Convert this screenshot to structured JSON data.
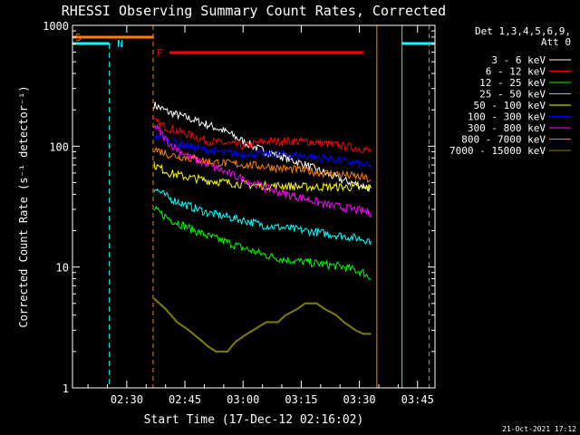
{
  "chart_data": {
    "type": "line",
    "title": "RHESSI Observing Summary Count Rates, Corrected",
    "xlabel": "Start Time (17-Dec-12 02:16:02)",
    "ylabel": "Corrected Count Rate (s⁻¹ detector⁻¹)",
    "yscale": "log",
    "ylim": [
      1,
      1000
    ],
    "xlim_minutes_after_0216": [
      0,
      93.5
    ],
    "xticks": [
      {
        "label": "02:30",
        "value": 14
      },
      {
        "label": "02:45",
        "value": 29
      },
      {
        "label": "03:00",
        "value": 44
      },
      {
        "label": "03:15",
        "value": 59
      },
      {
        "label": "03:30",
        "value": 74
      },
      {
        "label": "03:45",
        "value": 89
      }
    ],
    "yticks": [
      {
        "label": "1",
        "value": 1
      },
      {
        "label": "10",
        "value": 10
      },
      {
        "label": "100",
        "value": 100
      },
      {
        "label": "1000",
        "value": 1000
      }
    ],
    "legend_header": [
      "Det 1,3,4,5,6,9,",
      "Att 0"
    ],
    "legend_position": "right",
    "footer": "21-Oct-2021 17:12",
    "flags": [
      {
        "letter": "S",
        "color": "#ff8000",
        "start": 0,
        "end": 21
      },
      {
        "letter": "F",
        "color": "#ff0000",
        "start": 25,
        "end": 75
      }
    ],
    "night": {
      "letter": "N",
      "color": "#00ffff"
    },
    "series": [
      {
        "name": "3 - 6 keV",
        "color": "#ffffff",
        "x": [
          21,
          25,
          30,
          35,
          40,
          44,
          48,
          50,
          55,
          60,
          65,
          70,
          75,
          77
        ],
        "y": [
          220,
          190,
          170,
          150,
          130,
          110,
          95,
          90,
          80,
          70,
          60,
          52,
          47,
          45
        ]
      },
      {
        "name": "6 - 12 keV",
        "color": "#ff0000",
        "x": [
          21,
          25,
          30,
          35,
          40,
          44,
          47,
          50,
          55,
          60,
          65,
          70,
          75,
          77
        ],
        "y": [
          160,
          140,
          125,
          110,
          105,
          100,
          105,
          110,
          110,
          110,
          105,
          100,
          95,
          90
        ]
      },
      {
        "name": "12 - 25 keV",
        "color": "#00ff00",
        "x": [
          21,
          25,
          30,
          35,
          40,
          45,
          50,
          55,
          60,
          65,
          70,
          75,
          77
        ],
        "y": [
          30,
          25,
          21,
          18,
          16,
          14,
          12.5,
          11.5,
          11,
          10.5,
          10,
          9,
          8
        ]
      },
      {
        "name": "25 - 50 keV",
        "color": "#00ffff",
        "x": [
          21,
          25,
          30,
          35,
          40,
          45,
          50,
          55,
          60,
          65,
          70,
          75,
          77
        ],
        "y": [
          45,
          37,
          32,
          28,
          26,
          24,
          22,
          21,
          20,
          19,
          18,
          17,
          16.5
        ]
      },
      {
        "name": "50 - 100 keV",
        "color": "#ffff00",
        "x": [
          21,
          25,
          30,
          35,
          40,
          45,
          50,
          55,
          60,
          65,
          70,
          75,
          77
        ],
        "y": [
          70,
          60,
          55,
          52,
          50,
          48,
          47,
          47,
          46,
          46,
          46,
          45,
          45
        ]
      },
      {
        "name": "100 - 300 keV",
        "color": "#0000ff",
        "x": [
          21,
          25,
          30,
          35,
          40,
          45,
          50,
          55,
          60,
          65,
          70,
          75,
          77
        ],
        "y": [
          125,
          110,
          100,
          92,
          88,
          86,
          86,
          85,
          83,
          80,
          75,
          70,
          66
        ]
      },
      {
        "name": "300 - 800 keV",
        "color": "#ff00ff",
        "x": [
          21,
          25,
          30,
          35,
          40,
          45,
          50,
          55,
          60,
          65,
          70,
          75,
          77
        ],
        "y": [
          150,
          105,
          82,
          70,
          60,
          52,
          45,
          40,
          37,
          33,
          31,
          29,
          28
        ]
      },
      {
        "name": "800 - 7000 keV",
        "color": "#ff8000",
        "x": [
          21,
          25,
          30,
          35,
          40,
          45,
          50,
          55,
          60,
          65,
          70,
          75,
          77
        ],
        "y": [
          95,
          85,
          80,
          75,
          72,
          70,
          68,
          65,
          63,
          60,
          58,
          55,
          52
        ]
      },
      {
        "name": "7000 - 15000 keV",
        "color": "#808000",
        "x": [
          21,
          24,
          27,
          30,
          33,
          35,
          37,
          40,
          42,
          45,
          48,
          50,
          53,
          55,
          58,
          60,
          63,
          65,
          68,
          70,
          73,
          75,
          77
        ],
        "y": [
          5.5,
          4.5,
          3.5,
          3,
          2.5,
          2.2,
          2,
          2,
          2.4,
          2.8,
          3.2,
          3.5,
          3.5,
          4,
          4.5,
          5,
          5,
          4.5,
          4,
          3.5,
          3,
          2.8,
          2.8
        ]
      }
    ]
  }
}
